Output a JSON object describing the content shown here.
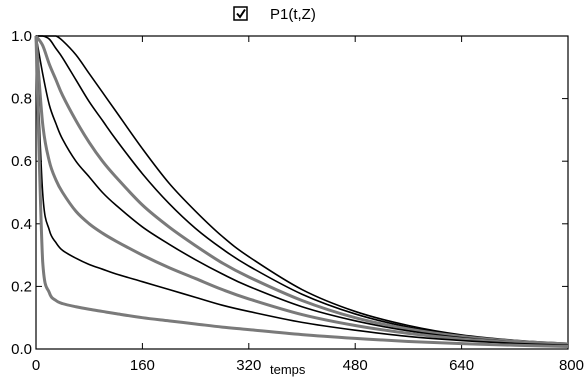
{
  "chart_data": {
    "type": "line",
    "title": "",
    "xlabel": "temps",
    "ylabel": "",
    "xlim": [
      0,
      800
    ],
    "ylim": [
      0,
      1
    ],
    "grid": false,
    "legend": {
      "label": "P1(t,Z)",
      "checked": true,
      "position": "top-center"
    },
    "x_ticks": [
      "0",
      "160",
      "320",
      "480",
      "640",
      "800"
    ],
    "y_ticks": [
      "0.0",
      "0.2",
      "0.4",
      "0.6",
      "0.8",
      "1.0"
    ],
    "x": [
      0,
      10,
      20,
      30,
      40,
      60,
      80,
      100,
      120,
      160,
      200,
      240,
      280,
      320,
      400,
      480,
      560,
      640,
      720,
      800
    ],
    "series": [
      {
        "color": "#000000",
        "values": [
          1.0,
          1.0,
          1.0,
          1.0,
          0.985,
          0.94,
          0.88,
          0.82,
          0.76,
          0.64,
          0.53,
          0.44,
          0.36,
          0.295,
          0.19,
          0.12,
          0.075,
          0.045,
          0.028,
          0.018
        ]
      },
      {
        "color": "#000000",
        "values": [
          1.0,
          1.0,
          0.99,
          0.96,
          0.93,
          0.86,
          0.79,
          0.73,
          0.67,
          0.56,
          0.465,
          0.385,
          0.32,
          0.265,
          0.175,
          0.112,
          0.07,
          0.043,
          0.027,
          0.017
        ]
      },
      {
        "color": "#7a7a7a",
        "values": [
          1.0,
          0.97,
          0.91,
          0.86,
          0.81,
          0.73,
          0.66,
          0.6,
          0.55,
          0.46,
          0.39,
          0.33,
          0.275,
          0.23,
          0.155,
          0.1,
          0.064,
          0.04,
          0.025,
          0.016
        ]
      },
      {
        "color": "#000000",
        "values": [
          1.0,
          0.88,
          0.78,
          0.72,
          0.67,
          0.6,
          0.55,
          0.5,
          0.46,
          0.39,
          0.335,
          0.285,
          0.24,
          0.2,
          0.135,
          0.09,
          0.058,
          0.036,
          0.023,
          0.015
        ]
      },
      {
        "color": "#7a7a7a",
        "values": [
          1.0,
          0.72,
          0.6,
          0.54,
          0.5,
          0.44,
          0.4,
          0.37,
          0.345,
          0.3,
          0.26,
          0.225,
          0.19,
          0.16,
          0.11,
          0.075,
          0.05,
          0.032,
          0.021,
          0.014
        ]
      },
      {
        "color": "#000000",
        "values": [
          1.0,
          0.5,
          0.38,
          0.34,
          0.315,
          0.29,
          0.27,
          0.255,
          0.24,
          0.215,
          0.19,
          0.165,
          0.14,
          0.12,
          0.085,
          0.06,
          0.04,
          0.027,
          0.018,
          0.012
        ]
      },
      {
        "color": "#7a7a7a",
        "values": [
          1.0,
          0.28,
          0.18,
          0.155,
          0.145,
          0.135,
          0.127,
          0.12,
          0.113,
          0.1,
          0.09,
          0.08,
          0.07,
          0.062,
          0.046,
          0.034,
          0.024,
          0.017,
          0.012,
          0.008
        ]
      }
    ]
  }
}
